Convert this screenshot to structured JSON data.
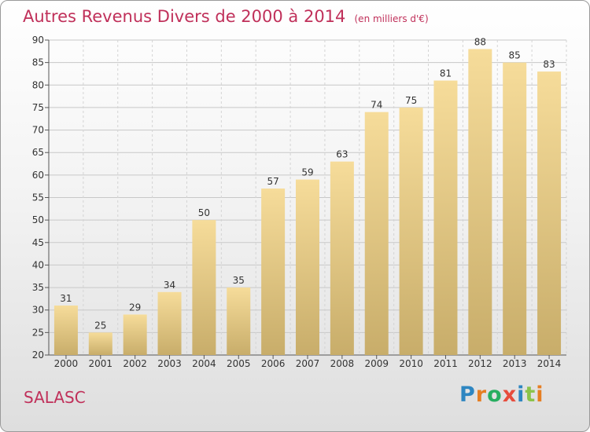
{
  "header": {
    "title": "Autres Revenus Divers de 2000 à 2014",
    "subtitle": "(en milliers d'€)"
  },
  "location": "SALASC",
  "brand": {
    "letters": [
      "P",
      "r",
      "o",
      "x",
      "i",
      "t",
      "i"
    ],
    "colors": [
      "#2e86c1",
      "#e67e22",
      "#27ae60",
      "#e74c3c",
      "#2e86c1",
      "#8bc34a",
      "#e67e22"
    ]
  },
  "chart_data": {
    "type": "bar",
    "title": "Autres Revenus Divers de 2000 à 2014",
    "subtitle": "(en milliers d'€)",
    "xlabel": "",
    "ylabel": "",
    "categories": [
      "2000",
      "2001",
      "2002",
      "2003",
      "2004",
      "2005",
      "2006",
      "2007",
      "2008",
      "2009",
      "2010",
      "2011",
      "2012",
      "2013",
      "2014"
    ],
    "values": [
      31,
      25,
      29,
      34,
      50,
      35,
      57,
      59,
      63,
      74,
      75,
      81,
      88,
      85,
      83
    ],
    "ylim": [
      20,
      90
    ],
    "yticks": [
      20,
      25,
      30,
      35,
      40,
      45,
      50,
      55,
      60,
      65,
      70,
      75,
      80,
      85,
      90
    ],
    "grid": true,
    "data_labels": true,
    "bar_color_top": "#f6dc9a",
    "bar_color_bottom": "#c8ad6a"
  }
}
